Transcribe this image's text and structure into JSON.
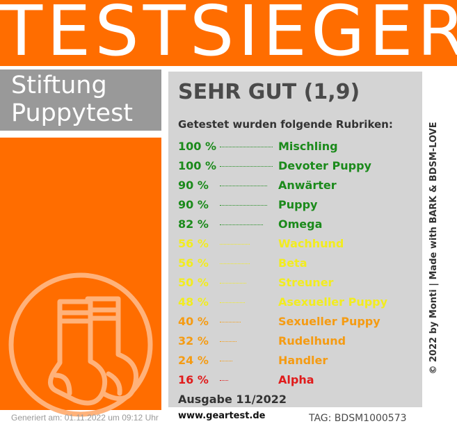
{
  "banner": {
    "title": "TESTSIEGER"
  },
  "brand": {
    "line1": "Stiftung",
    "line2": "Puppytest"
  },
  "result": {
    "grade": "SEHR GUT (1,9)",
    "subtitle": "Getestet wurden folgende Rubriken:",
    "rows": [
      {
        "percent": "100 %",
        "value": 100,
        "category": "Mischling",
        "color": "#1b8a1b"
      },
      {
        "percent": "100 %",
        "value": 100,
        "category": "Devoter Puppy",
        "color": "#1b8a1b"
      },
      {
        "percent": "90 %",
        "value": 90,
        "category": "Anwärter",
        "color": "#1b8a1b"
      },
      {
        "percent": "90 %",
        "value": 90,
        "category": "Puppy",
        "color": "#1b8a1b"
      },
      {
        "percent": "82 %",
        "value": 82,
        "category": "Omega",
        "color": "#1b8a1b"
      },
      {
        "percent": "56 %",
        "value": 56,
        "category": "Wachhund",
        "color": "#f2ec1f"
      },
      {
        "percent": "56 %",
        "value": 56,
        "category": "Beta",
        "color": "#f2ec1f"
      },
      {
        "percent": "50 %",
        "value": 50,
        "category": "Streuner",
        "color": "#f2ec1f"
      },
      {
        "percent": "48 %",
        "value": 48,
        "category": "Asexueller Puppy",
        "color": "#f2ec1f"
      },
      {
        "percent": "40 %",
        "value": 40,
        "category": "Sexueller Puppy",
        "color": "#f59b12"
      },
      {
        "percent": "32 %",
        "value": 32,
        "category": "Rudelhund",
        "color": "#f59b12"
      },
      {
        "percent": "24 %",
        "value": 24,
        "category": "Handler",
        "color": "#f59b12"
      },
      {
        "percent": "16 %",
        "value": 16,
        "category": "Alpha",
        "color": "#e01b1b"
      }
    ]
  },
  "edition": "Ausgabe 11/2022",
  "website": "www.geartest.de",
  "tag": "TAG: BDSM1000573",
  "generated": "Generiert am: 01.11.2022 um 09:12 Uhr",
  "credit": "© 2022 by Monti | Made with BARK & BDSM-LOVE",
  "icon": "socks-icon",
  "colors": {
    "orange": "#ff6d00",
    "gray": "#999999",
    "panel": "#d4d4d4"
  }
}
